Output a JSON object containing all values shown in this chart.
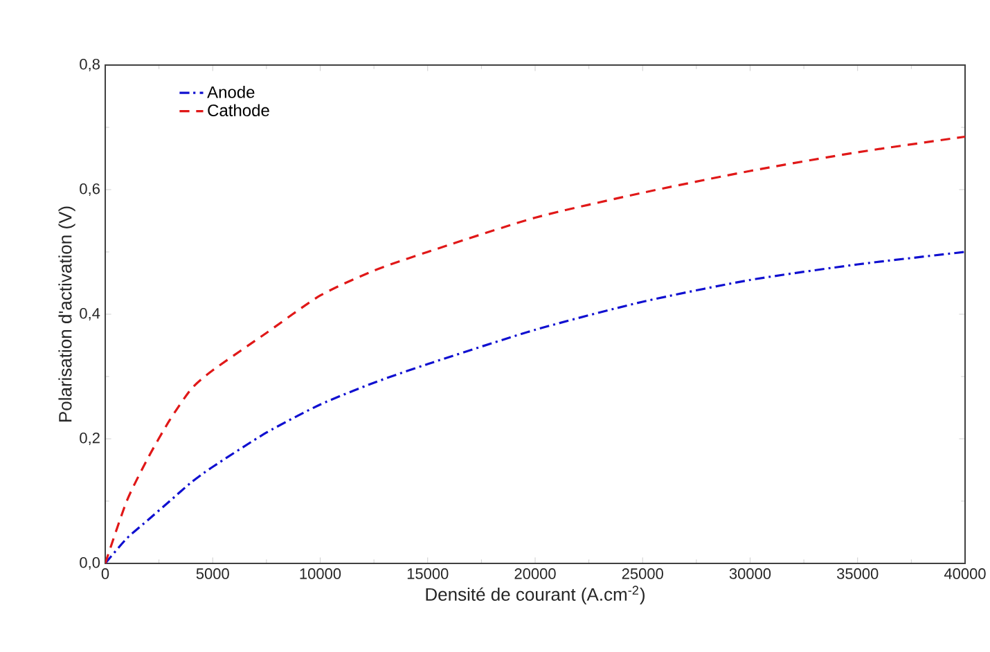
{
  "chart_data": {
    "type": "line",
    "xlabel": "Densité de courant (A.cm$^{-2}$)",
    "ylabel": "Polarisation d'activation (V)",
    "x": [
      0,
      1000,
      2000,
      3000,
      4000,
      5000,
      7500,
      10000,
      12500,
      15000,
      20000,
      25000,
      30000,
      35000,
      40000
    ],
    "series": [
      {
        "name": "Anode",
        "color": "#1010d0",
        "line_style": "dashdot",
        "values": [
          0,
          0.04,
          0.07,
          0.1,
          0.13,
          0.155,
          0.21,
          0.255,
          0.29,
          0.32,
          0.375,
          0.42,
          0.455,
          0.48,
          0.5
        ]
      },
      {
        "name": "Cathode",
        "color": "#e01818",
        "line_style": "dashed",
        "values": [
          0,
          0.1,
          0.17,
          0.23,
          0.28,
          0.31,
          0.37,
          0.43,
          0.47,
          0.5,
          0.555,
          0.595,
          0.63,
          0.66,
          0.685
        ]
      }
    ],
    "xlim": [
      0,
      40000
    ],
    "ylim": [
      0,
      0.8
    ],
    "xticks": [
      0,
      5000,
      10000,
      15000,
      20000,
      25000,
      30000,
      35000,
      40000
    ],
    "yticks": [
      {
        "value": 0,
        "label": "0,0"
      },
      {
        "value": 0.2,
        "label": "0,2"
      },
      {
        "value": 0.4,
        "label": "0,4"
      },
      {
        "value": 0.6,
        "label": "0,6"
      },
      {
        "value": 0.8,
        "label": "0,8"
      }
    ],
    "grid": false,
    "legend": "top left",
    "marker": "none"
  }
}
